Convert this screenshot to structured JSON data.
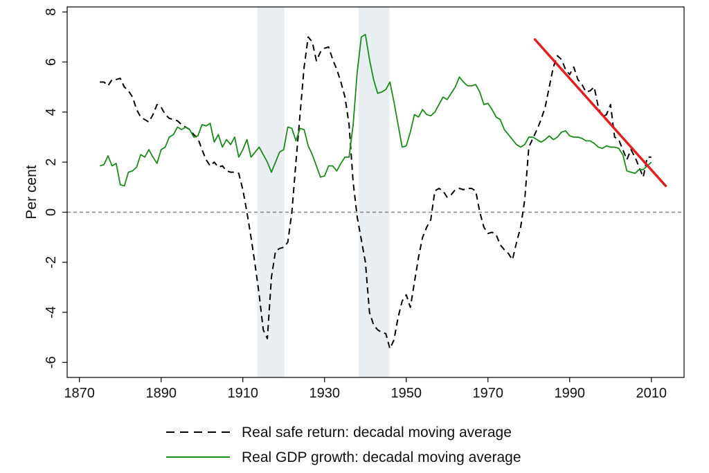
{
  "chart_data": {
    "type": "line",
    "title": "",
    "xlabel": "",
    "ylabel": "Per cent",
    "xlim": [
      1867,
      2018
    ],
    "ylim": [
      -6.6,
      8.2
    ],
    "xticks": [
      1870,
      1890,
      1910,
      1930,
      1950,
      1970,
      1990,
      2010
    ],
    "yticks": [
      -6,
      -4,
      -2,
      0,
      2,
      4,
      6,
      8
    ],
    "grid": false,
    "reference_line": {
      "y": 0,
      "style": "dotted",
      "color": "#8a8a8a"
    },
    "shaded_periods": [
      {
        "from": 1913.5,
        "to": 1920.2
      },
      {
        "from": 1938.3,
        "to": 1945.9
      }
    ],
    "legend": {
      "placement": "bottom",
      "entries": [
        {
          "label": "Real safe return: decadal moving average",
          "style": "dashed",
          "color": "#000000"
        },
        {
          "label": "Real GDP growth: decadal moving average",
          "style": "solid",
          "color": "#1a8a1a"
        }
      ]
    },
    "series": [
      {
        "name": "Real safe return: decadal moving average",
        "style": "dashed",
        "color": "#000000",
        "points": [
          [
            1875,
            5.2
          ],
          [
            1876,
            5.2
          ],
          [
            1877,
            5.05
          ],
          [
            1878,
            5.3
          ],
          [
            1879,
            5.3
          ],
          [
            1880,
            5.35
          ],
          [
            1881,
            5.0
          ],
          [
            1882,
            4.85
          ],
          [
            1883,
            4.6
          ],
          [
            1884,
            4.1
          ],
          [
            1885,
            3.8
          ],
          [
            1886,
            3.7
          ],
          [
            1887,
            3.6
          ],
          [
            1888,
            3.9
          ],
          [
            1889,
            4.3
          ],
          [
            1890,
            4.2
          ],
          [
            1891,
            3.9
          ],
          [
            1892,
            3.75
          ],
          [
            1893,
            3.7
          ],
          [
            1894,
            3.65
          ],
          [
            1895,
            3.5
          ],
          [
            1896,
            3.4
          ],
          [
            1897,
            3.3
          ],
          [
            1898,
            3.1
          ],
          [
            1899,
            2.95
          ],
          [
            1900,
            2.5
          ],
          [
            1901,
            2.1
          ],
          [
            1902,
            1.85
          ],
          [
            1903,
            2.0
          ],
          [
            1904,
            1.8
          ],
          [
            1905,
            1.85
          ],
          [
            1906,
            1.65
          ],
          [
            1907,
            1.6
          ],
          [
            1908,
            1.6
          ],
          [
            1909,
            1.55
          ],
          [
            1910,
            0.9
          ],
          [
            1911,
            0.0
          ],
          [
            1912,
            -1.0
          ],
          [
            1913,
            -2.1
          ],
          [
            1914,
            -3.3
          ],
          [
            1915,
            -4.7
          ],
          [
            1916,
            -5.05
          ],
          [
            1917,
            -2.6
          ],
          [
            1918,
            -1.55
          ],
          [
            1919,
            -1.45
          ],
          [
            1920,
            -1.4
          ],
          [
            1921,
            -1.2
          ],
          [
            1922,
            0.0
          ],
          [
            1923,
            2.0
          ],
          [
            1924,
            3.9
          ],
          [
            1925,
            5.8
          ],
          [
            1926,
            7.0
          ],
          [
            1927,
            6.8
          ],
          [
            1928,
            6.05
          ],
          [
            1929,
            6.4
          ],
          [
            1930,
            6.55
          ],
          [
            1931,
            6.6
          ],
          [
            1932,
            6.1
          ],
          [
            1933,
            5.7
          ],
          [
            1934,
            5.2
          ],
          [
            1935,
            4.6
          ],
          [
            1936,
            3.5
          ],
          [
            1937,
            1.2
          ],
          [
            1938,
            -0.2
          ],
          [
            1939,
            -1.1
          ],
          [
            1940,
            -2.0
          ],
          [
            1941,
            -4.0
          ],
          [
            1942,
            -4.5
          ],
          [
            1943,
            -4.7
          ],
          [
            1944,
            -4.8
          ],
          [
            1945,
            -4.85
          ],
          [
            1946,
            -5.45
          ],
          [
            1947,
            -5.1
          ],
          [
            1948,
            -4.2
          ],
          [
            1949,
            -3.55
          ],
          [
            1950,
            -3.3
          ],
          [
            1951,
            -3.8
          ],
          [
            1952,
            -2.8
          ],
          [
            1953,
            -1.8
          ],
          [
            1954,
            -1.0
          ],
          [
            1955,
            -0.6
          ],
          [
            1956,
            -0.3
          ],
          [
            1957,
            0.85
          ],
          [
            1958,
            0.95
          ],
          [
            1959,
            0.85
          ],
          [
            1960,
            0.6
          ],
          [
            1961,
            0.7
          ],
          [
            1962,
            0.9
          ],
          [
            1963,
            0.95
          ],
          [
            1964,
            0.9
          ],
          [
            1965,
            0.95
          ],
          [
            1966,
            0.95
          ],
          [
            1967,
            0.85
          ],
          [
            1968,
            0.0
          ],
          [
            1969,
            -0.6
          ],
          [
            1970,
            -0.85
          ],
          [
            1971,
            -0.8
          ],
          [
            1972,
            -0.9
          ],
          [
            1973,
            -1.3
          ],
          [
            1974,
            -1.5
          ],
          [
            1975,
            -1.65
          ],
          [
            1976,
            -1.9
          ],
          [
            1977,
            -1.2
          ],
          [
            1978,
            -0.6
          ],
          [
            1979,
            0.5
          ],
          [
            1980,
            2.6
          ],
          [
            1981,
            2.95
          ],
          [
            1982,
            3.3
          ],
          [
            1983,
            3.7
          ],
          [
            1984,
            4.2
          ],
          [
            1985,
            5.0
          ],
          [
            1986,
            5.8
          ],
          [
            1987,
            6.25
          ],
          [
            1988,
            6.1
          ],
          [
            1989,
            5.7
          ],
          [
            1990,
            5.5
          ],
          [
            1991,
            5.8
          ],
          [
            1992,
            5.3
          ],
          [
            1993,
            5.1
          ],
          [
            1994,
            4.8
          ],
          [
            1995,
            4.85
          ],
          [
            1996,
            5.0
          ],
          [
            1997,
            4.2
          ],
          [
            1998,
            3.8
          ],
          [
            1999,
            3.9
          ],
          [
            2000,
            4.3
          ],
          [
            2001,
            3.0
          ],
          [
            2002,
            2.9
          ],
          [
            2003,
            2.5
          ],
          [
            2004,
            2.1
          ],
          [
            2005,
            2.5
          ],
          [
            2006,
            2.2
          ],
          [
            2007,
            1.8
          ],
          [
            2008,
            1.4
          ],
          [
            2009,
            2.2
          ],
          [
            2010,
            2.2
          ]
        ]
      },
      {
        "name": "Real GDP growth: decadal moving average",
        "style": "solid",
        "color": "#1a8a1a",
        "points": [
          [
            1875,
            1.85
          ],
          [
            1876,
            1.9
          ],
          [
            1877,
            2.25
          ],
          [
            1878,
            1.85
          ],
          [
            1879,
            1.95
          ],
          [
            1880,
            1.1
          ],
          [
            1881,
            1.05
          ],
          [
            1882,
            1.6
          ],
          [
            1883,
            1.65
          ],
          [
            1884,
            1.8
          ],
          [
            1885,
            2.3
          ],
          [
            1886,
            2.2
          ],
          [
            1887,
            2.5
          ],
          [
            1888,
            2.2
          ],
          [
            1889,
            1.95
          ],
          [
            1890,
            2.5
          ],
          [
            1891,
            2.6
          ],
          [
            1892,
            3.0
          ],
          [
            1893,
            3.1
          ],
          [
            1894,
            3.4
          ],
          [
            1895,
            3.3
          ],
          [
            1896,
            3.4
          ],
          [
            1897,
            3.3
          ],
          [
            1898,
            3.0
          ],
          [
            1899,
            3.05
          ],
          [
            1900,
            3.5
          ],
          [
            1901,
            3.45
          ],
          [
            1902,
            3.55
          ],
          [
            1903,
            2.8
          ],
          [
            1904,
            3.1
          ],
          [
            1905,
            2.6
          ],
          [
            1906,
            2.9
          ],
          [
            1907,
            2.7
          ],
          [
            1908,
            3.0
          ],
          [
            1909,
            2.2
          ],
          [
            1910,
            2.5
          ],
          [
            1911,
            2.9
          ],
          [
            1912,
            2.2
          ],
          [
            1913,
            2.4
          ],
          [
            1914,
            2.6
          ],
          [
            1915,
            2.3
          ],
          [
            1916,
            2.0
          ],
          [
            1917,
            1.6
          ],
          [
            1918,
            2.0
          ],
          [
            1919,
            2.4
          ],
          [
            1920,
            2.5
          ],
          [
            1921,
            3.4
          ],
          [
            1922,
            3.35
          ],
          [
            1923,
            2.85
          ],
          [
            1924,
            3.35
          ],
          [
            1925,
            3.3
          ],
          [
            1926,
            2.65
          ],
          [
            1927,
            2.3
          ],
          [
            1928,
            1.85
          ],
          [
            1929,
            1.4
          ],
          [
            1930,
            1.45
          ],
          [
            1931,
            1.85
          ],
          [
            1932,
            1.85
          ],
          [
            1933,
            1.65
          ],
          [
            1934,
            1.95
          ],
          [
            1935,
            2.2
          ],
          [
            1936,
            2.2
          ],
          [
            1937,
            3.5
          ],
          [
            1938,
            5.6
          ],
          [
            1939,
            7.0
          ],
          [
            1940,
            7.1
          ],
          [
            1941,
            6.1
          ],
          [
            1942,
            5.3
          ],
          [
            1943,
            4.75
          ],
          [
            1944,
            4.8
          ],
          [
            1945,
            4.9
          ],
          [
            1946,
            5.2
          ],
          [
            1947,
            4.4
          ],
          [
            1948,
            3.5
          ],
          [
            1949,
            2.6
          ],
          [
            1950,
            2.65
          ],
          [
            1951,
            3.2
          ],
          [
            1952,
            3.9
          ],
          [
            1953,
            3.8
          ],
          [
            1954,
            4.1
          ],
          [
            1955,
            3.9
          ],
          [
            1956,
            3.85
          ],
          [
            1957,
            4.0
          ],
          [
            1958,
            4.3
          ],
          [
            1959,
            4.6
          ],
          [
            1960,
            4.5
          ],
          [
            1961,
            4.75
          ],
          [
            1962,
            5.0
          ],
          [
            1963,
            5.4
          ],
          [
            1964,
            5.2
          ],
          [
            1965,
            5.05
          ],
          [
            1966,
            5.05
          ],
          [
            1967,
            5.1
          ],
          [
            1968,
            4.8
          ],
          [
            1969,
            4.3
          ],
          [
            1970,
            4.35
          ],
          [
            1971,
            4.1
          ],
          [
            1972,
            3.8
          ],
          [
            1973,
            3.7
          ],
          [
            1974,
            3.3
          ],
          [
            1975,
            3.1
          ],
          [
            1976,
            2.9
          ],
          [
            1977,
            2.7
          ],
          [
            1978,
            2.6
          ],
          [
            1979,
            2.7
          ],
          [
            1980,
            3.0
          ],
          [
            1981,
            3.0
          ],
          [
            1982,
            2.9
          ],
          [
            1983,
            2.8
          ],
          [
            1984,
            2.9
          ],
          [
            1985,
            3.05
          ],
          [
            1986,
            2.9
          ],
          [
            1987,
            3.0
          ],
          [
            1988,
            3.2
          ],
          [
            1989,
            3.25
          ],
          [
            1990,
            3.05
          ],
          [
            1991,
            3.0
          ],
          [
            1992,
            3.0
          ],
          [
            1993,
            2.95
          ],
          [
            1994,
            2.85
          ],
          [
            1995,
            2.85
          ],
          [
            1996,
            2.75
          ],
          [
            1997,
            2.6
          ],
          [
            1998,
            2.55
          ],
          [
            1999,
            2.65
          ],
          [
            2000,
            2.6
          ],
          [
            2001,
            2.6
          ],
          [
            2002,
            2.55
          ],
          [
            2003,
            2.3
          ],
          [
            2004,
            1.65
          ],
          [
            2005,
            1.6
          ],
          [
            2006,
            1.55
          ],
          [
            2007,
            1.7
          ],
          [
            2008,
            1.7
          ],
          [
            2009,
            1.85
          ],
          [
            2010,
            2.0
          ]
        ]
      }
    ],
    "annotations": [
      {
        "type": "trend-line",
        "color": "#e02020",
        "from": [
          1981.5,
          6.9
        ],
        "to": [
          2013.5,
          1.05
        ]
      }
    ]
  }
}
